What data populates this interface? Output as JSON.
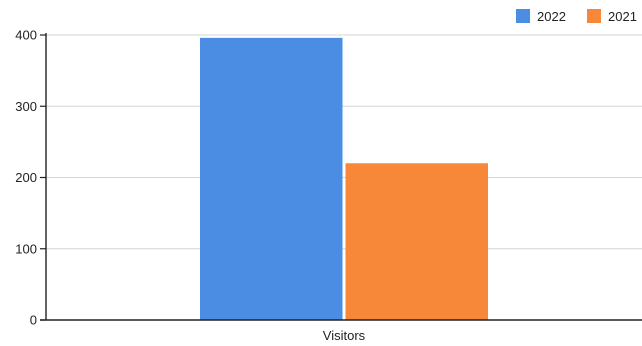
{
  "chart_data": {
    "type": "bar",
    "categories": [
      "Visitors"
    ],
    "series": [
      {
        "name": "2022",
        "values": [
          396
        ],
        "color": "#4a8de3"
      },
      {
        "name": "2021",
        "values": [
          220
        ],
        "color": "#f7883a"
      }
    ],
    "yticks": [
      "0",
      "100",
      "200",
      "300",
      "400"
    ],
    "ylim": [
      0,
      400
    ],
    "grid": true,
    "legend": "top-right"
  }
}
